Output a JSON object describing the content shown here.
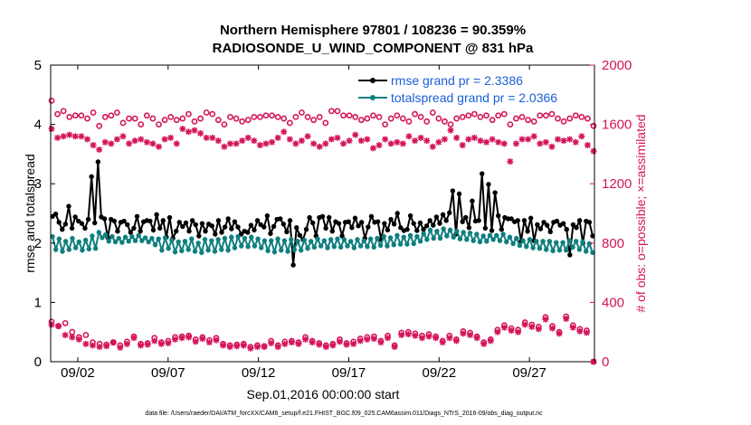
{
  "chart_data": {
    "type": "line",
    "title_line1": "Northern Hemisphere 97801 / 108236 = 90.359%",
    "title_line2": "RADIOSONDE_U_WIND_COMPONENT @ 831 hPa",
    "xlabel": "Sep.01,2016 00:00:00 start",
    "ylabel_left": "rmse and totalspread",
    "ylabel_right": "# of obs: o=possible; ×=assimilated",
    "footnote": "data file: /Users/raeder/DAI/ATM_forcXX/CAM6_setup/f.e21.FHIST_BGC.f09_025.CAM6assim.011/Diags_NTrS_2016-09/obs_diag_output.nc",
    "x_range_days": [
      0.5,
      30.6
    ],
    "y_left_range": [
      0,
      5
    ],
    "y_right_range": [
      0,
      2000
    ],
    "x_ticks": [
      {
        "day": 2,
        "label": "09/02"
      },
      {
        "day": 7,
        "label": "09/07"
      },
      {
        "day": 12,
        "label": "09/12"
      },
      {
        "day": 17,
        "label": "09/17"
      },
      {
        "day": 22,
        "label": "09/22"
      },
      {
        "day": 27,
        "label": "09/27"
      }
    ],
    "y_left_ticks": [
      "0",
      "1",
      "2",
      "3",
      "4",
      "5"
    ],
    "y_right_ticks": [
      "0",
      "400",
      "800",
      "1200",
      "1600",
      "2000"
    ],
    "colors": {
      "rmse": "#000000",
      "spread": "#0f7f7f",
      "obs": "#d4145a",
      "legend_text": "#1a5fd6"
    },
    "series": [
      {
        "name": "rmse grand pr = 2.3386",
        "axis": "left",
        "color": "#000000",
        "values": [
          2.45,
          2.49,
          2.35,
          2.23,
          2.32,
          2.62,
          2.25,
          2.44,
          2.37,
          2.33,
          2.25,
          2.4,
          3.12,
          2.34,
          3.37,
          2.44,
          2.41,
          2.09,
          2.4,
          2.37,
          2.2,
          2.35,
          2.37,
          2.31,
          2.18,
          2.25,
          2.45,
          2.2,
          2.36,
          2.38,
          2.37,
          2.22,
          2.48,
          2.25,
          2.38,
          2.1,
          2.43,
          2.08,
          2.2,
          2.35,
          2.28,
          2.34,
          2.2,
          2.38,
          2.31,
          2.12,
          2.33,
          2.2,
          2.32,
          2.29,
          2.15,
          2.38,
          2.18,
          2.27,
          2.41,
          2.24,
          2.36,
          2.27,
          2.15,
          2.2,
          2.18,
          2.3,
          2.22,
          2.38,
          2.31,
          2.27,
          2.46,
          2.16,
          2.28,
          2.4,
          2.41,
          2.32,
          2.19,
          2.38,
          1.63,
          2.26,
          2.13,
          2.06,
          2.23,
          2.43,
          2.34,
          2.12,
          2.43,
          2.45,
          2.25,
          2.43,
          2.2,
          2.36,
          2.33,
          2.12,
          2.35,
          2.36,
          2.26,
          2.42,
          2.29,
          2.35,
          2.08,
          2.27,
          2.45,
          2.35,
          2.36,
          2.06,
          2.33,
          2.22,
          2.4,
          2.32,
          2.5,
          2.26,
          2.21,
          2.23,
          2.46,
          2.33,
          2.21,
          2.34,
          2.23,
          2.29,
          2.38,
          2.3,
          2.44,
          2.33,
          2.48,
          2.38,
          2.51,
          2.88,
          2.15,
          2.83,
          2.36,
          2.43,
          2.26,
          2.71,
          2.37,
          2.38,
          3.17,
          2.25,
          2.99,
          2.21,
          2.85,
          2.46,
          2.23,
          2.43,
          2.41,
          2.41,
          2.36,
          2.38,
          2.03,
          2.38,
          2.2,
          2.42,
          2.04,
          2.31,
          2.24,
          2.35,
          2.3,
          2.19,
          2.35,
          2.37,
          2.3,
          2.33,
          2.23,
          1.8,
          2.31,
          2.26,
          2.38,
          2.0,
          2.37,
          2.35,
          2.12
        ]
      },
      {
        "name": "totalspread grand pr = 2.0366",
        "axis": "left",
        "color": "#0f7f7f",
        "values": [
          2.11,
          1.89,
          2.07,
          1.86,
          2.03,
          1.89,
          2.08,
          1.92,
          2.02,
          1.88,
          2.05,
          1.9,
          2.12,
          1.91,
          2.18,
          2.09,
          2.14,
          2.03,
          2.11,
          2.02,
          2.08,
          2.01,
          2.1,
          2.03,
          2.11,
          2.04,
          2.13,
          2.04,
          2.09,
          2.02,
          2.08,
          1.97,
          2.07,
          1.88,
          2.09,
          1.91,
          2.05,
          1.85,
          2.02,
          1.87,
          2.03,
          1.89,
          2.07,
          1.86,
          2.0,
          1.84,
          2.06,
          1.88,
          2.04,
          1.86,
          2.06,
          1.89,
          2.08,
          1.88,
          2.1,
          1.92,
          2.11,
          1.95,
          2.08,
          1.94,
          2.1,
          1.95,
          2.07,
          1.92,
          2.04,
          1.87,
          2.04,
          1.85,
          2.07,
          1.88,
          2.04,
          1.86,
          2.06,
          1.89,
          2.03,
          1.88,
          2.05,
          1.91,
          2.03,
          1.93,
          2.07,
          1.95,
          2.04,
          1.92,
          2.06,
          1.94,
          2.07,
          1.93,
          2.06,
          1.95,
          2.03,
          1.92,
          2.06,
          1.95,
          2.04,
          1.94,
          2.07,
          1.93,
          2.08,
          1.96,
          2.11,
          1.95,
          2.09,
          1.97,
          2.13,
          1.98,
          2.1,
          1.98,
          2.13,
          1.99,
          2.11,
          2.03,
          2.16,
          2.06,
          2.22,
          2.08,
          2.2,
          2.08,
          2.24,
          2.12,
          2.22,
          2.1,
          2.2,
          2.07,
          2.18,
          2.06,
          2.17,
          2.04,
          2.15,
          2.02,
          2.12,
          2.03,
          2.13,
          2.06,
          2.13,
          2.04,
          2.15,
          2.02,
          2.1,
          1.99,
          2.08,
          1.96,
          2.04,
          1.94,
          2.06,
          1.92,
          2.03,
          1.91,
          2.03,
          1.89,
          2.03,
          1.87,
          2.01,
          1.88,
          2.01,
          1.88,
          2.04,
          1.93,
          2.03,
          1.89,
          2.02,
          1.86,
          1.99,
          1.84
        ]
      },
      {
        "name": "possible",
        "axis": "right",
        "marker": "circle",
        "color": "#d4145a",
        "values": [
          1760,
          1670,
          1690,
          1650,
          1660,
          1660,
          1640,
          1680,
          1590,
          1650,
          1660,
          1680,
          1610,
          1640,
          1640,
          1600,
          1660,
          1640,
          1600,
          1630,
          1650,
          1630,
          1640,
          1670,
          1620,
          1640,
          1680,
          1670,
          1630,
          1600,
          1650,
          1640,
          1620,
          1630,
          1650,
          1650,
          1660,
          1660,
          1650,
          1640,
          1610,
          1650,
          1680,
          1650,
          1630,
          1650,
          1610,
          1690,
          1690,
          1660,
          1660,
          1650,
          1630,
          1640,
          1660,
          1650,
          1600,
          1640,
          1660,
          1640,
          1620,
          1670,
          1650,
          1620,
          1680,
          1640,
          1620,
          1600,
          1640,
          1650,
          1660,
          1670,
          1650,
          1660,
          1630,
          1660,
          1670,
          1600,
          1640,
          1650,
          1630,
          1620,
          1660,
          1660,
          1670,
          1640,
          1620,
          1640,
          1660,
          1650,
          1640,
          1590
        ]
      },
      {
        "name": "assimilated",
        "axis": "right",
        "marker": "asterisk",
        "color": "#d4145a",
        "values": [
          1570,
          1510,
          1520,
          1530,
          1520,
          1520,
          1500,
          1460,
          1430,
          1480,
          1470,
          1500,
          1520,
          1470,
          1490,
          1500,
          1480,
          1470,
          1450,
          1500,
          1510,
          1470,
          1570,
          1550,
          1560,
          1540,
          1510,
          1510,
          1490,
          1450,
          1470,
          1470,
          1490,
          1510,
          1490,
          1460,
          1470,
          1480,
          1510,
          1550,
          1500,
          1470,
          1490,
          1520,
          1470,
          1450,
          1470,
          1500,
          1510,
          1470,
          1490,
          1530,
          1490,
          1500,
          1440,
          1460,
          1500,
          1470,
          1480,
          1470,
          1520,
          1490,
          1510,
          1490,
          1450,
          1480,
          1500,
          1560,
          1510,
          1460,
          1500,
          1510,
          1490,
          1480,
          1500,
          1480,
          1470,
          1350,
          1470,
          1500,
          1500,
          1520,
          1470,
          1480,
          1450,
          1500,
          1490,
          1500,
          1480,
          1520,
          1460,
          1420
        ]
      },
      {
        "name": "possible_low",
        "axis": "right",
        "marker": "circle",
        "color": "#d4145a",
        "values": [
          270,
          240,
          260,
          200,
          165,
          180,
          130,
          120,
          115,
          130,
          110,
          135,
          170,
          120,
          125,
          160,
          130,
          140,
          165,
          170,
          175,
          150,
          165,
          145,
          160,
          120,
          110,
          115,
          120,
          100,
          110,
          105,
          140,
          110,
          135,
          140,
          130,
          165,
          140,
          125,
          110,
          120,
          150,
          125,
          135,
          155,
          165,
          170,
          140,
          175,
          110,
          195,
          200,
          190,
          175,
          185,
          170,
          140,
          175,
          150,
          205,
          195,
          170,
          130,
          150,
          215,
          245,
          225,
          215,
          265,
          250,
          235,
          300,
          240,
          200,
          305,
          245,
          220,
          210,
          0
        ]
      },
      {
        "name": "assimilated_low",
        "axis": "right",
        "marker": "asterisk",
        "color": "#d4145a",
        "values": [
          250,
          240,
          180,
          165,
          150,
          120,
          110,
          100,
          105,
          130,
          95,
          120,
          160,
          110,
          115,
          140,
          120,
          125,
          150,
          160,
          165,
          135,
          155,
          130,
          145,
          110,
          100,
          105,
          110,
          90,
          100,
          100,
          125,
          100,
          120,
          130,
          120,
          150,
          130,
          115,
          100,
          110,
          135,
          115,
          120,
          140,
          150,
          155,
          130,
          160,
          100,
          180,
          185,
          175,
          160,
          170,
          160,
          130,
          160,
          140,
          190,
          180,
          160,
          120,
          140,
          200,
          230,
          210,
          200,
          250,
          235,
          220,
          285,
          225,
          190,
          290,
          230,
          205,
          195,
          0
        ]
      }
    ],
    "legend": {
      "position": "top-right",
      "entries": [
        "rmse grand pr = 2.3386",
        "totalspread grand pr = 2.0366"
      ]
    }
  }
}
